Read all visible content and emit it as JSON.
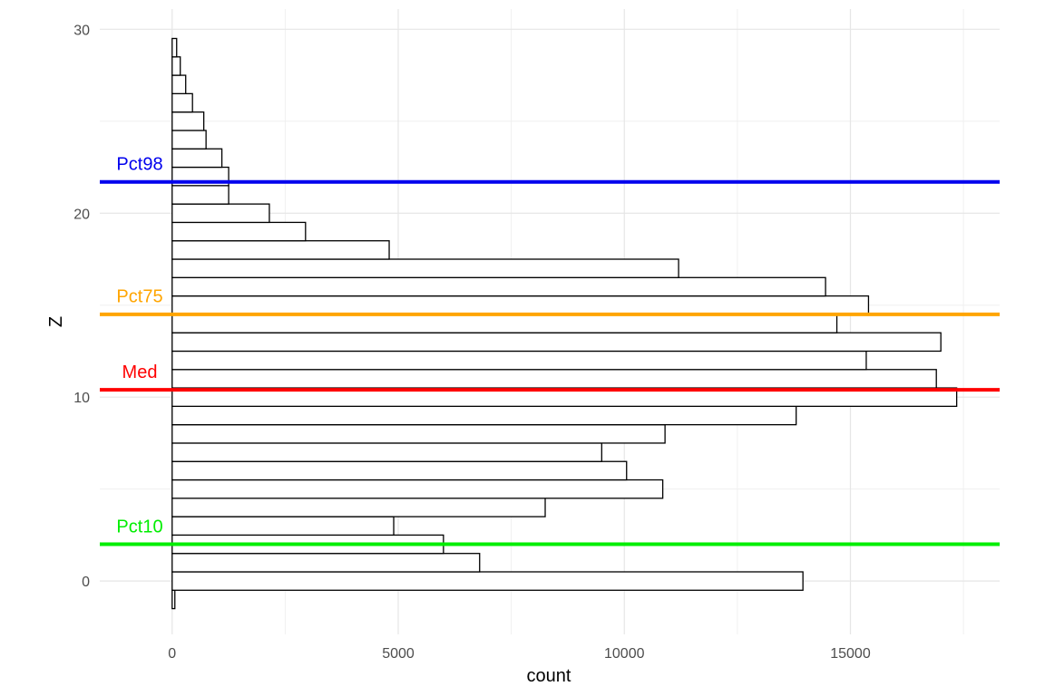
{
  "chart_data": {
    "type": "bar",
    "orientation": "horizontal",
    "xlabel": "count",
    "ylabel": "Z",
    "xlim": [
      -1600,
      18300
    ],
    "ylim": [
      -2.9,
      31.1
    ],
    "x_ticks": [
      0,
      5000,
      10000,
      15000
    ],
    "y_ticks": [
      0,
      10,
      20,
      30
    ],
    "grid": true,
    "bin_width": 1,
    "bins": [
      {
        "z": -1,
        "count": 60
      },
      {
        "z": 0,
        "count": 13950
      },
      {
        "z": 1,
        "count": 6800
      },
      {
        "z": 2,
        "count": 6000
      },
      {
        "z": 3,
        "count": 4900
      },
      {
        "z": 4,
        "count": 8250
      },
      {
        "z": 5,
        "count": 10850
      },
      {
        "z": 6,
        "count": 10050
      },
      {
        "z": 7,
        "count": 9500
      },
      {
        "z": 8,
        "count": 10900
      },
      {
        "z": 9,
        "count": 13800
      },
      {
        "z": 10,
        "count": 17350
      },
      {
        "z": 11,
        "count": 16900
      },
      {
        "z": 12,
        "count": 15350
      },
      {
        "z": 13,
        "count": 17000
      },
      {
        "z": 14,
        "count": 14700
      },
      {
        "z": 15,
        "count": 15400
      },
      {
        "z": 16,
        "count": 14450
      },
      {
        "z": 17,
        "count": 11200
      },
      {
        "z": 18,
        "count": 4800
      },
      {
        "z": 19,
        "count": 2950
      },
      {
        "z": 20,
        "count": 2150
      },
      {
        "z": 21,
        "count": 1250
      },
      {
        "z": 22,
        "count": 1250
      },
      {
        "z": 23,
        "count": 1100
      },
      {
        "z": 24,
        "count": 750
      },
      {
        "z": 25,
        "count": 700
      },
      {
        "z": 26,
        "count": 450
      },
      {
        "z": 27,
        "count": 300
      },
      {
        "z": 28,
        "count": 180
      },
      {
        "z": 29,
        "count": 100
      }
    ],
    "reference_lines": [
      {
        "label": "Pct98",
        "value": 21.7,
        "color": "#0000ee"
      },
      {
        "label": "Pct75",
        "value": 14.5,
        "color": "#ffa500"
      },
      {
        "label": "Med",
        "value": 10.4,
        "color": "#ff0000"
      },
      {
        "label": "Pct10",
        "value": 2.0,
        "color": "#00ee00"
      }
    ]
  }
}
